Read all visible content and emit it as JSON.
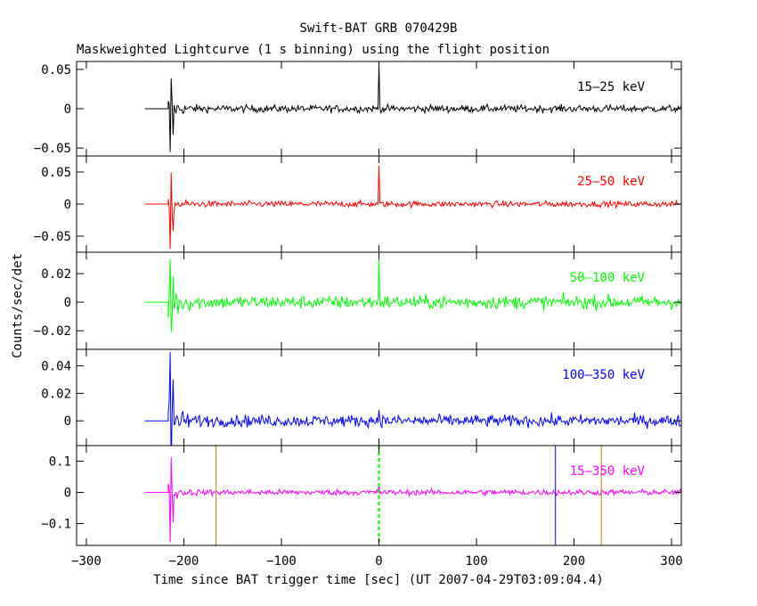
{
  "chart_data": {
    "type": "line",
    "title": "Swift-BAT GRB 070429B",
    "subtitle": "Maskweighted Lightcurve (1 s binning) using the flight position",
    "xlabel": "Time since BAT trigger time [sec] (UT 2007-04-29T03:09:04.4)",
    "ylabel": "Counts/sec/det",
    "xlim": [
      -310,
      310
    ],
    "x_ticks": [
      -300,
      -200,
      -100,
      0,
      100,
      200,
      300
    ],
    "x_tick_labels": [
      "−300",
      "−200",
      "−100",
      "0",
      "100",
      "200",
      "300"
    ],
    "data_start": -240,
    "data_end": 310,
    "trigger_time": 0,
    "panels": [
      {
        "band": "15–25 keV",
        "color": "#000000",
        "ylim": [
          -0.06,
          0.06
        ],
        "yticks": [
          -0.05,
          0,
          0.05
        ],
        "ytick_labels": [
          "−0.05",
          "0",
          "0.05"
        ],
        "noise_level": 0.006,
        "spike_peak": -0.055,
        "trigger_peak": 0.055
      },
      {
        "band": "25–50 keV",
        "color": "#ff0000",
        "ylim": [
          -0.075,
          0.075
        ],
        "yticks": [
          -0.05,
          0,
          0.05
        ],
        "ytick_labels": [
          "−0.05",
          "0",
          "0.05"
        ],
        "noise_level": 0.006,
        "spike_peak": -0.07,
        "trigger_peak": 0.06
      },
      {
        "band": "50–100 keV",
        "color": "#00ff00",
        "ylim": [
          -0.033,
          0.035
        ],
        "yticks": [
          -0.02,
          0,
          0.02
        ],
        "ytick_labels": [
          "−0.02",
          "0",
          "0.02"
        ],
        "noise_level": 0.006,
        "spike_peak": 0.03,
        "trigger_peak": 0.03
      },
      {
        "band": "100–350 keV",
        "color": "#0000ff",
        "ylim": [
          -0.018,
          0.052
        ],
        "yticks": [
          0,
          0.02,
          0.04
        ],
        "ytick_labels": [
          "0",
          "0.02",
          "0.04"
        ],
        "noise_level": 0.0055,
        "spike_peak": 0.05,
        "trigger_peak": 0.008
      },
      {
        "band": "15–350 keV",
        "color": "#ff00ff",
        "ylim": [
          -0.17,
          0.15
        ],
        "yticks": [
          -0.1,
          0,
          0.1
        ],
        "ytick_labels": [
          "−0.1",
          "0",
          "0.1"
        ],
        "noise_level": 0.012,
        "spike_peak": -0.16,
        "trigger_peak": 0.03
      }
    ],
    "markers": [
      {
        "x": -167,
        "color": "#b8860b",
        "style": "solid"
      },
      {
        "x": 0,
        "color": "#00ff00",
        "style": "dashed"
      },
      {
        "x": 181,
        "color": "#0000ff",
        "style": "solid"
      },
      {
        "x": 228,
        "color": "#b8860b",
        "style": "solid"
      }
    ]
  }
}
